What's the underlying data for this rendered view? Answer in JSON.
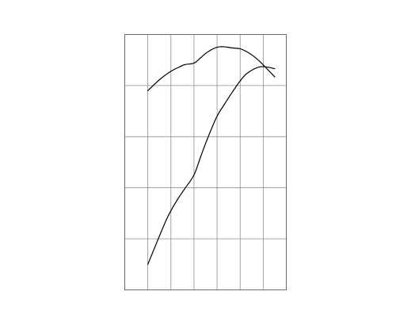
{
  "chart_data": {
    "type": "line",
    "title": "",
    "xlabel": "",
    "ylabel": "",
    "xlim": [
      0,
      7
    ],
    "ylim": [
      0,
      5
    ],
    "grid": true,
    "x_gridlines": [
      1,
      2,
      3,
      4,
      5,
      6
    ],
    "y_gridlines": [
      1,
      2,
      3,
      4
    ],
    "legend": "none",
    "colors": {
      "line": "#000000",
      "grid": "#8f8f8f",
      "frame": "#6e6e6e"
    },
    "series": [
      {
        "x": [
          1.0,
          1.3,
          1.6,
          2.0,
          2.3,
          2.6,
          3.0,
          3.3,
          3.6,
          4.0,
          4.3,
          4.6,
          5.0,
          5.3,
          5.6,
          5.9,
          6.2,
          6.5
        ],
        "y": [
          3.9,
          4.03,
          4.15,
          4.28,
          4.35,
          4.41,
          4.44,
          4.55,
          4.66,
          4.75,
          4.76,
          4.74,
          4.72,
          4.66,
          4.57,
          4.45,
          4.31,
          4.17
        ]
      },
      {
        "x": [
          1.0,
          1.2,
          1.5,
          1.8,
          2.0,
          2.3,
          2.6,
          3.0,
          3.3,
          3.6,
          4.0,
          4.3,
          4.6,
          4.9,
          5.2,
          5.5,
          5.8,
          6.0,
          6.2,
          6.5
        ],
        "y": [
          0.5,
          0.72,
          1.05,
          1.37,
          1.55,
          1.78,
          1.98,
          2.25,
          2.62,
          2.98,
          3.4,
          3.62,
          3.83,
          4.03,
          4.2,
          4.3,
          4.36,
          4.37,
          4.36,
          4.33
        ]
      }
    ]
  }
}
